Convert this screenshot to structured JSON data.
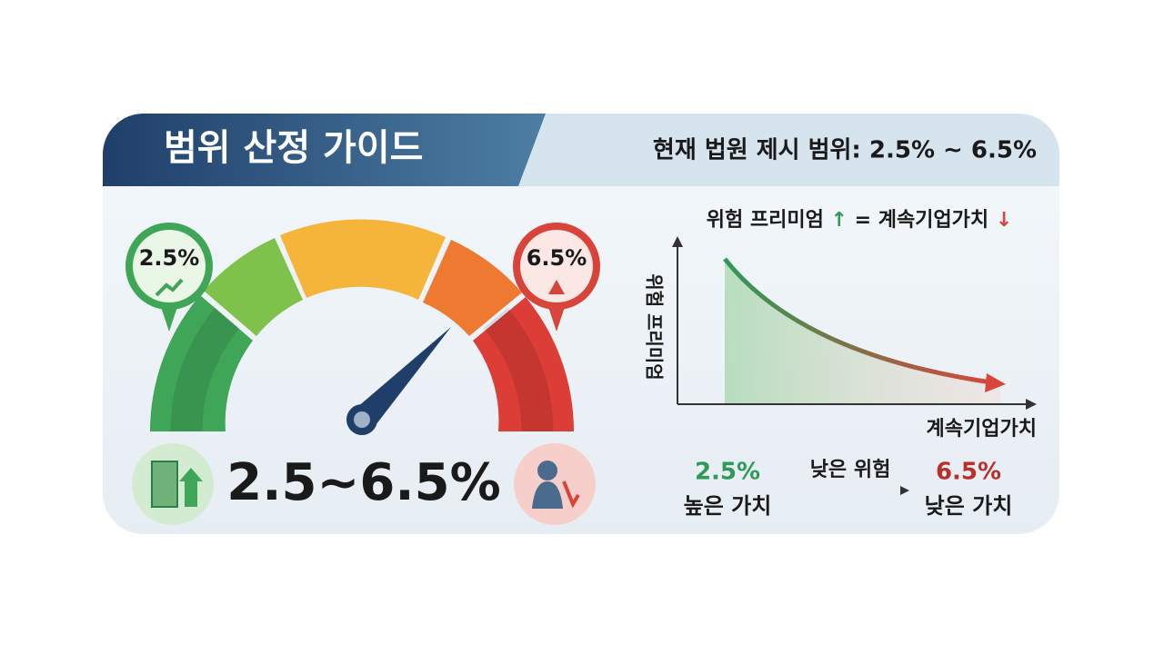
{
  "header": {
    "title": "범위 산정 가이드",
    "subtitle": "현재 법원 제시 범위: 2.5% ~ 6.5%"
  },
  "gauge": {
    "low_label": "2.5%",
    "high_label": "6.5%",
    "range_label": "2.5~6.5%"
  },
  "chart": {
    "title_parts": [
      "위험 프리미엄",
      "↑",
      "= 계속기업가치",
      "↓"
    ],
    "y_axis_label": "위험 프리미엄",
    "x_axis_label": "계속기업가치"
  },
  "legend": {
    "left_value": "2.5%",
    "left_caption": "높은 가치",
    "arrow_label": "낮은 위험",
    "right_value": "6.5%",
    "right_caption": "낮은 가치"
  }
}
